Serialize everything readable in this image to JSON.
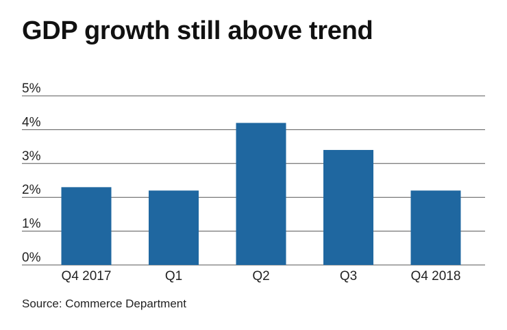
{
  "title": "GDP growth still above trend",
  "source": "Source: Commerce Department",
  "chart_data": {
    "type": "bar",
    "categories": [
      "Q4 2017",
      "Q1",
      "Q2",
      "Q3",
      "Q4 2018"
    ],
    "values": [
      2.3,
      2.2,
      4.2,
      3.4,
      2.2
    ],
    "ylim": [
      0,
      5
    ],
    "yticks": [
      0,
      1,
      2,
      3,
      4,
      5
    ],
    "ytick_labels": [
      "0%",
      "1%",
      "2%",
      "3%",
      "4%",
      "5%"
    ],
    "grid": true,
    "bar_color": "#1f67a0",
    "grid_color": "#555555"
  }
}
